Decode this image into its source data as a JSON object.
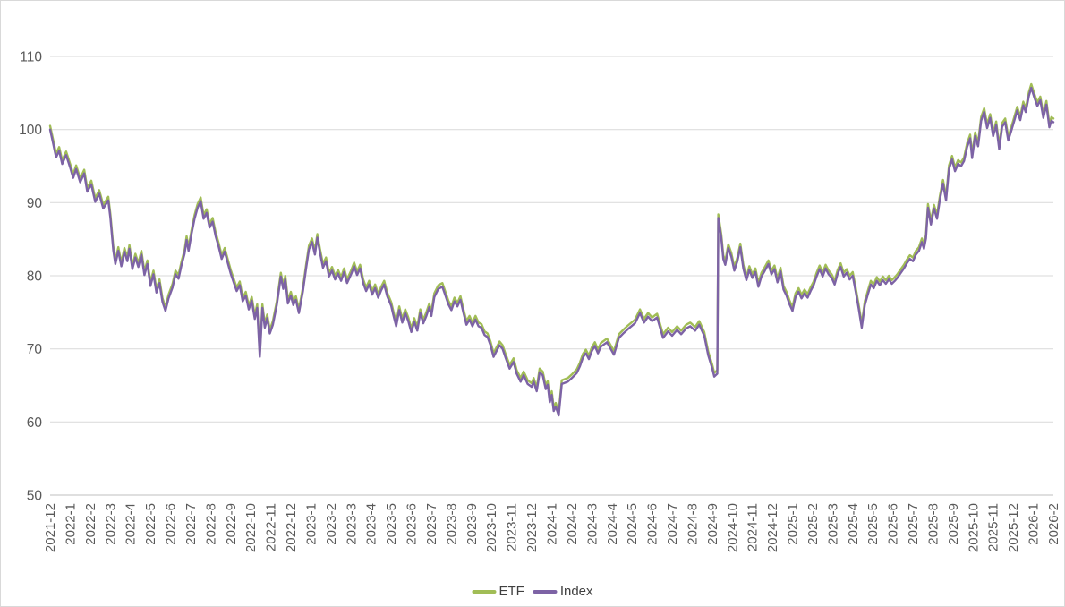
{
  "chart_data": {
    "type": "line",
    "title": "",
    "legend_position": "bottom",
    "grid": true,
    "ylim": [
      50,
      110
    ],
    "y_ticks": [
      110,
      100,
      90,
      80,
      70,
      60,
      50
    ],
    "x_labels": [
      "2021-12",
      "2022-1",
      "2022-2",
      "2022-3",
      "2022-4",
      "2022-5",
      "2022-6",
      "2022-7",
      "2022-8",
      "2022-9",
      "2022-10",
      "2022-11",
      "2022-12",
      "2023-1",
      "2023-2",
      "2023-3",
      "2023-4",
      "2023-5",
      "2023-6",
      "2023-7",
      "2023-8",
      "2023-9",
      "2023-10",
      "2023-11",
      "2023-12",
      "2024-1",
      "2024-2",
      "2024-3",
      "2024-4",
      "2024-5",
      "2024-6",
      "2024-7",
      "2024-8",
      "2024-9",
      "2024-10",
      "2024-11",
      "2024-12",
      "2025-1",
      "2025-2",
      "2025-3",
      "2025-4",
      "2025-5",
      "2025-6",
      "2025-7",
      "2025-8",
      "2025-9",
      "2025-10",
      "2025-11",
      "2025-12",
      "2026-1",
      "2026-2"
    ],
    "x_unit": "months-since-2021-12",
    "x": [
      0,
      0.15,
      0.3,
      0.45,
      0.6,
      0.8,
      1.0,
      1.15,
      1.3,
      1.5,
      1.7,
      1.85,
      2.05,
      2.25,
      2.45,
      2.65,
      2.9,
      3.0,
      3.15,
      3.25,
      3.4,
      3.55,
      3.7,
      3.85,
      3.95,
      4.1,
      4.25,
      4.4,
      4.55,
      4.7,
      4.85,
      5.0,
      5.15,
      5.3,
      5.45,
      5.6,
      5.75,
      5.9,
      6.1,
      6.25,
      6.4,
      6.55,
      6.7,
      6.8,
      6.9,
      7.05,
      7.2,
      7.35,
      7.5,
      7.65,
      7.8,
      7.95,
      8.1,
      8.25,
      8.4,
      8.55,
      8.7,
      8.85,
      9.0,
      9.15,
      9.3,
      9.45,
      9.6,
      9.75,
      9.9,
      10.05,
      10.2,
      10.32,
      10.45,
      10.58,
      10.7,
      10.82,
      10.95,
      11.1,
      11.3,
      11.5,
      11.62,
      11.72,
      11.85,
      12.0,
      12.12,
      12.25,
      12.4,
      12.6,
      12.75,
      12.9,
      13.05,
      13.2,
      13.32,
      13.45,
      13.6,
      13.75,
      13.9,
      14.05,
      14.2,
      14.35,
      14.5,
      14.65,
      14.8,
      15.0,
      15.15,
      15.3,
      15.45,
      15.6,
      15.75,
      15.9,
      16.05,
      16.2,
      16.35,
      16.5,
      16.65,
      16.8,
      17.0,
      17.1,
      17.25,
      17.4,
      17.55,
      17.7,
      17.85,
      18.0,
      18.15,
      18.3,
      18.45,
      18.6,
      18.75,
      18.9,
      19.0,
      19.15,
      19.35,
      19.55,
      19.7,
      19.85,
      20.0,
      20.15,
      20.3,
      20.45,
      20.6,
      20.75,
      20.9,
      21.05,
      21.2,
      21.35,
      21.5,
      21.65,
      21.8,
      21.95,
      22.1,
      22.25,
      22.4,
      22.55,
      22.7,
      22.9,
      23.1,
      23.25,
      23.45,
      23.6,
      23.8,
      24.0,
      24.1,
      24.25,
      24.4,
      24.55,
      24.7,
      24.8,
      24.9,
      25.0,
      25.1,
      25.2,
      25.35,
      25.5,
      25.8,
      26.0,
      26.25,
      26.4,
      26.55,
      26.7,
      26.85,
      27.0,
      27.15,
      27.3,
      27.45,
      27.75,
      28.1,
      28.35,
      28.6,
      28.8,
      29.15,
      29.4,
      29.6,
      29.8,
      30.0,
      30.25,
      30.55,
      30.8,
      31.0,
      31.25,
      31.45,
      31.7,
      31.9,
      32.15,
      32.35,
      32.6,
      32.8,
      33.0,
      33.1,
      33.25,
      33.3,
      33.45,
      33.55,
      33.65,
      33.8,
      33.95,
      34.1,
      34.25,
      34.4,
      34.55,
      34.7,
      34.85,
      35.0,
      35.15,
      35.3,
      35.45,
      35.6,
      35.8,
      35.95,
      36.1,
      36.25,
      36.4,
      36.55,
      36.7,
      36.85,
      37.0,
      37.15,
      37.3,
      37.45,
      37.6,
      37.75,
      37.9,
      38.05,
      38.2,
      38.35,
      38.5,
      38.65,
      38.8,
      38.95,
      39.1,
      39.25,
      39.4,
      39.55,
      39.7,
      39.85,
      40.0,
      40.15,
      40.3,
      40.45,
      40.6,
      40.75,
      40.9,
      41.05,
      41.2,
      41.35,
      41.5,
      41.65,
      41.8,
      41.95,
      42.1,
      42.25,
      42.4,
      42.55,
      42.7,
      42.85,
      43.0,
      43.15,
      43.3,
      43.45,
      43.55,
      43.65,
      43.75,
      43.9,
      44.05,
      44.2,
      44.35,
      44.5,
      44.65,
      44.8,
      44.95,
      45.1,
      45.25,
      45.4,
      45.55,
      45.7,
      45.85,
      45.95,
      46.1,
      46.25,
      46.4,
      46.55,
      46.7,
      46.85,
      47.0,
      47.15,
      47.3,
      47.45,
      47.6,
      47.75,
      47.9,
      48.05,
      48.2,
      48.35,
      48.5,
      48.62,
      48.78,
      48.9,
      49.05,
      49.2,
      49.35,
      49.5,
      49.65,
      49.8,
      49.9,
      50.0
    ],
    "series": [
      {
        "name": "ETF",
        "color": "#A1BD56",
        "values": [
          100.5,
          98.6,
          96.7,
          97.6,
          95.8,
          97.0,
          95.3,
          93.9,
          95.1,
          93.3,
          94.5,
          92.0,
          93.0,
          90.6,
          91.7,
          89.7,
          90.8,
          88.5,
          84.0,
          82.1,
          83.9,
          81.8,
          83.8,
          82.5,
          84.2,
          81.4,
          83.0,
          81.7,
          83.4,
          80.6,
          82.1,
          79.1,
          80.7,
          78.2,
          79.5,
          76.9,
          75.7,
          77.4,
          78.9,
          80.7,
          80.1,
          82.0,
          83.5,
          85.4,
          83.9,
          86.3,
          88.3,
          89.8,
          90.7,
          88.3,
          89.1,
          87.1,
          87.9,
          85.9,
          84.5,
          82.8,
          83.8,
          82.3,
          80.8,
          79.6,
          78.4,
          79.2,
          77.0,
          77.8,
          75.9,
          77.1,
          74.6,
          76.1,
          69.4,
          76.1,
          73.4,
          74.7,
          72.6,
          73.8,
          76.5,
          80.4,
          78.7,
          80.0,
          76.7,
          77.8,
          76.5,
          77.2,
          75.4,
          78.4,
          81.4,
          84.1,
          85.1,
          83.4,
          85.7,
          83.7,
          81.6,
          82.5,
          80.4,
          81.2,
          80.0,
          80.8,
          79.8,
          81.0,
          79.5,
          80.7,
          81.8,
          80.6,
          81.5,
          79.5,
          78.4,
          79.3,
          77.9,
          78.8,
          77.5,
          78.5,
          79.3,
          77.7,
          76.4,
          75.2,
          73.6,
          75.8,
          74.1,
          75.4,
          74.3,
          72.8,
          74.2,
          73.0,
          75.4,
          74.0,
          75.0,
          76.2,
          75.0,
          77.6,
          78.7,
          79.0,
          77.8,
          76.6,
          75.8,
          77.0,
          76.3,
          77.2,
          75.4,
          73.8,
          74.5,
          73.6,
          74.5,
          73.6,
          73.4,
          72.4,
          72.1,
          71.0,
          69.4,
          70.2,
          71.0,
          70.5,
          69.3,
          67.8,
          68.7,
          67.1,
          66.0,
          66.9,
          65.7,
          65.3,
          66.0,
          64.7,
          67.3,
          66.9,
          65.0,
          65.6,
          63.2,
          64.2,
          62.0,
          62.6,
          61.4,
          65.7,
          66.0,
          66.5,
          67.2,
          68.1,
          69.3,
          69.9,
          69.1,
          70.2,
          70.9,
          69.9,
          70.8,
          71.4,
          69.7,
          72.0,
          72.7,
          73.2,
          74.0,
          75.4,
          74.1,
          74.9,
          74.3,
          74.8,
          72.0,
          72.9,
          72.3,
          73.1,
          72.5,
          73.3,
          73.6,
          73.0,
          73.8,
          72.3,
          69.6,
          67.8,
          66.7,
          67.1,
          88.4,
          85.7,
          82.8,
          82.0,
          84.3,
          83.1,
          81.2,
          82.5,
          84.4,
          81.5,
          79.9,
          81.3,
          80.2,
          81.0,
          79.0,
          80.4,
          81.1,
          82.1,
          80.7,
          81.4,
          79.6,
          81.1,
          78.6,
          77.8,
          76.6,
          75.7,
          77.6,
          78.3,
          77.4,
          78.1,
          77.5,
          78.4,
          79.2,
          80.4,
          81.4,
          80.4,
          81.5,
          80.7,
          80.2,
          79.3,
          80.8,
          81.7,
          80.4,
          80.9,
          80.0,
          80.5,
          78.3,
          76.0,
          73.4,
          76.5,
          77.9,
          79.3,
          78.8,
          79.8,
          79.2,
          79.9,
          79.4,
          80.0,
          79.4,
          79.8,
          80.3,
          80.9,
          81.5,
          82.2,
          82.8,
          82.5,
          83.4,
          83.9,
          85.1,
          84.2,
          85.6,
          89.8,
          87.5,
          89.7,
          88.3,
          91.0,
          93.1,
          90.8,
          95.1,
          96.4,
          94.8,
          95.8,
          95.5,
          96.2,
          98.1,
          99.3,
          96.6,
          99.6,
          98.2,
          101.7,
          102.9,
          100.7,
          102.1,
          99.6,
          101.1,
          97.8,
          100.9,
          101.5,
          99.0,
          100.3,
          101.7,
          103.1,
          101.8,
          103.8,
          102.9,
          105.1,
          106.2,
          104.9,
          103.7,
          104.5,
          102.1,
          103.9,
          100.8,
          101.7,
          101.5
        ]
      },
      {
        "name": "Index",
        "color": "#7D63A5",
        "values": [
          100.0,
          98.1,
          96.2,
          97.1,
          95.3,
          96.5,
          94.8,
          93.4,
          94.6,
          92.8,
          94.0,
          91.5,
          92.5,
          90.1,
          91.2,
          89.2,
          90.3,
          88.0,
          83.5,
          81.6,
          83.4,
          81.3,
          83.3,
          82.0,
          83.7,
          80.9,
          82.5,
          81.2,
          82.9,
          80.1,
          81.6,
          78.6,
          80.2,
          77.7,
          79.0,
          76.4,
          75.2,
          76.9,
          78.4,
          80.2,
          79.6,
          81.5,
          83.0,
          84.9,
          83.4,
          85.8,
          87.8,
          89.3,
          90.2,
          87.8,
          88.6,
          86.6,
          87.4,
          85.4,
          84.0,
          82.3,
          83.3,
          81.8,
          80.3,
          79.1,
          77.9,
          78.7,
          76.5,
          77.3,
          75.4,
          76.6,
          74.1,
          75.6,
          68.9,
          75.6,
          72.9,
          74.2,
          72.1,
          73.3,
          76.0,
          79.9,
          78.2,
          79.5,
          76.2,
          77.3,
          76.0,
          76.7,
          74.9,
          77.9,
          80.9,
          83.6,
          84.6,
          82.9,
          85.2,
          83.2,
          81.1,
          82.0,
          79.9,
          80.7,
          79.5,
          80.3,
          79.3,
          80.5,
          79.0,
          80.2,
          81.3,
          80.1,
          81.0,
          79.0,
          77.9,
          78.8,
          77.4,
          78.3,
          77.0,
          78.0,
          78.8,
          77.2,
          75.9,
          74.7,
          73.1,
          75.3,
          73.6,
          74.9,
          73.8,
          72.3,
          73.7,
          72.5,
          74.9,
          73.5,
          74.5,
          75.7,
          74.5,
          77.1,
          78.2,
          78.5,
          77.3,
          76.1,
          75.3,
          76.5,
          75.8,
          76.7,
          74.9,
          73.3,
          74.0,
          73.1,
          74.0,
          73.1,
          72.9,
          71.9,
          71.6,
          70.5,
          68.9,
          69.7,
          70.5,
          70.0,
          68.8,
          67.3,
          68.2,
          66.6,
          65.5,
          66.4,
          65.2,
          64.8,
          65.5,
          64.2,
          66.8,
          66.4,
          64.5,
          65.1,
          62.7,
          63.7,
          61.5,
          62.1,
          60.9,
          65.2,
          65.5,
          66.0,
          66.7,
          67.6,
          68.8,
          69.4,
          68.6,
          69.7,
          70.4,
          69.4,
          70.3,
          70.9,
          69.2,
          71.5,
          72.2,
          72.7,
          73.5,
          74.9,
          73.6,
          74.4,
          73.8,
          74.3,
          71.5,
          72.4,
          71.8,
          72.6,
          72.0,
          72.8,
          73.1,
          72.5,
          73.3,
          71.8,
          69.1,
          67.3,
          66.2,
          66.6,
          87.9,
          85.2,
          82.3,
          81.5,
          83.8,
          82.6,
          80.7,
          82.0,
          83.9,
          81.0,
          79.4,
          80.8,
          79.7,
          80.5,
          78.5,
          79.9,
          80.6,
          81.6,
          80.2,
          80.9,
          79.1,
          80.6,
          78.1,
          77.3,
          76.1,
          75.2,
          77.1,
          77.8,
          76.9,
          77.6,
          77.0,
          77.9,
          78.7,
          79.9,
          80.9,
          79.9,
          81.0,
          80.2,
          79.7,
          78.8,
          80.3,
          81.2,
          79.9,
          80.4,
          79.5,
          80.0,
          77.8,
          75.5,
          72.9,
          76.0,
          77.4,
          78.8,
          78.3,
          79.3,
          78.7,
          79.4,
          78.9,
          79.5,
          78.9,
          79.3,
          79.8,
          80.4,
          81.0,
          81.7,
          82.3,
          82.0,
          82.9,
          83.4,
          84.6,
          83.7,
          85.1,
          89.3,
          87.0,
          89.2,
          87.8,
          90.5,
          92.6,
          90.3,
          94.6,
          95.9,
          94.3,
          95.3,
          95.0,
          95.7,
          97.6,
          98.8,
          96.1,
          99.1,
          97.7,
          101.2,
          102.4,
          100.2,
          101.6,
          99.1,
          100.6,
          97.3,
          100.4,
          101.0,
          98.5,
          99.8,
          101.2,
          102.6,
          101.3,
          103.3,
          102.4,
          104.6,
          105.7,
          104.4,
          103.2,
          104.0,
          101.6,
          103.4,
          100.3,
          101.2,
          101.0
        ]
      }
    ],
    "colors": {
      "grid": "#D9D9D9",
      "axis": "#BFBFBF",
      "tick_text": "#595959",
      "legend_text": "#404040",
      "frame_border": "#D9D9D9",
      "background": "#FFFFFF"
    }
  }
}
